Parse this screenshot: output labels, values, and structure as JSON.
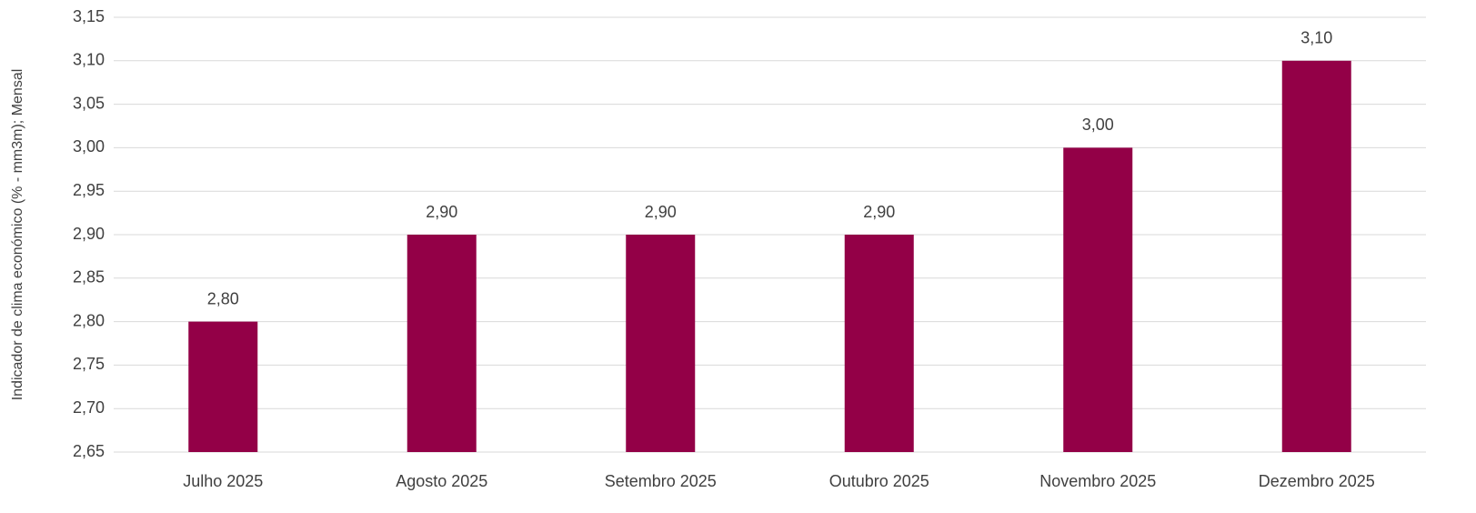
{
  "chart_data": {
    "type": "bar",
    "y_label": "Indicador de clima económico (% - mm3m); Mensal",
    "categories": [
      "Julho 2025",
      "Agosto 2025",
      "Setembro 2025",
      "Outubro 2025",
      "Novembro 2025",
      "Dezembro 2025"
    ],
    "values": [
      2.8,
      2.9,
      2.9,
      2.9,
      3.0,
      3.1
    ],
    "value_labels": [
      "2,80",
      "2,90",
      "2,90",
      "2,90",
      "3,00",
      "3,10"
    ],
    "color": "#930047",
    "ylim": [
      2.65,
      3.15
    ],
    "yticks": [
      {
        "value": 2.65,
        "label": "2,65"
      },
      {
        "value": 2.7,
        "label": "2,70"
      },
      {
        "value": 2.75,
        "label": "2,75"
      },
      {
        "value": 2.8,
        "label": "2,80"
      },
      {
        "value": 2.85,
        "label": "2,85"
      },
      {
        "value": 2.9,
        "label": "2,90"
      },
      {
        "value": 2.95,
        "label": "2,95"
      },
      {
        "value": 3.0,
        "label": "3,00"
      },
      {
        "value": 3.05,
        "label": "3,05"
      },
      {
        "value": 3.1,
        "label": "3,10"
      },
      {
        "value": 3.15,
        "label": "3,15"
      }
    ],
    "grid": true
  }
}
